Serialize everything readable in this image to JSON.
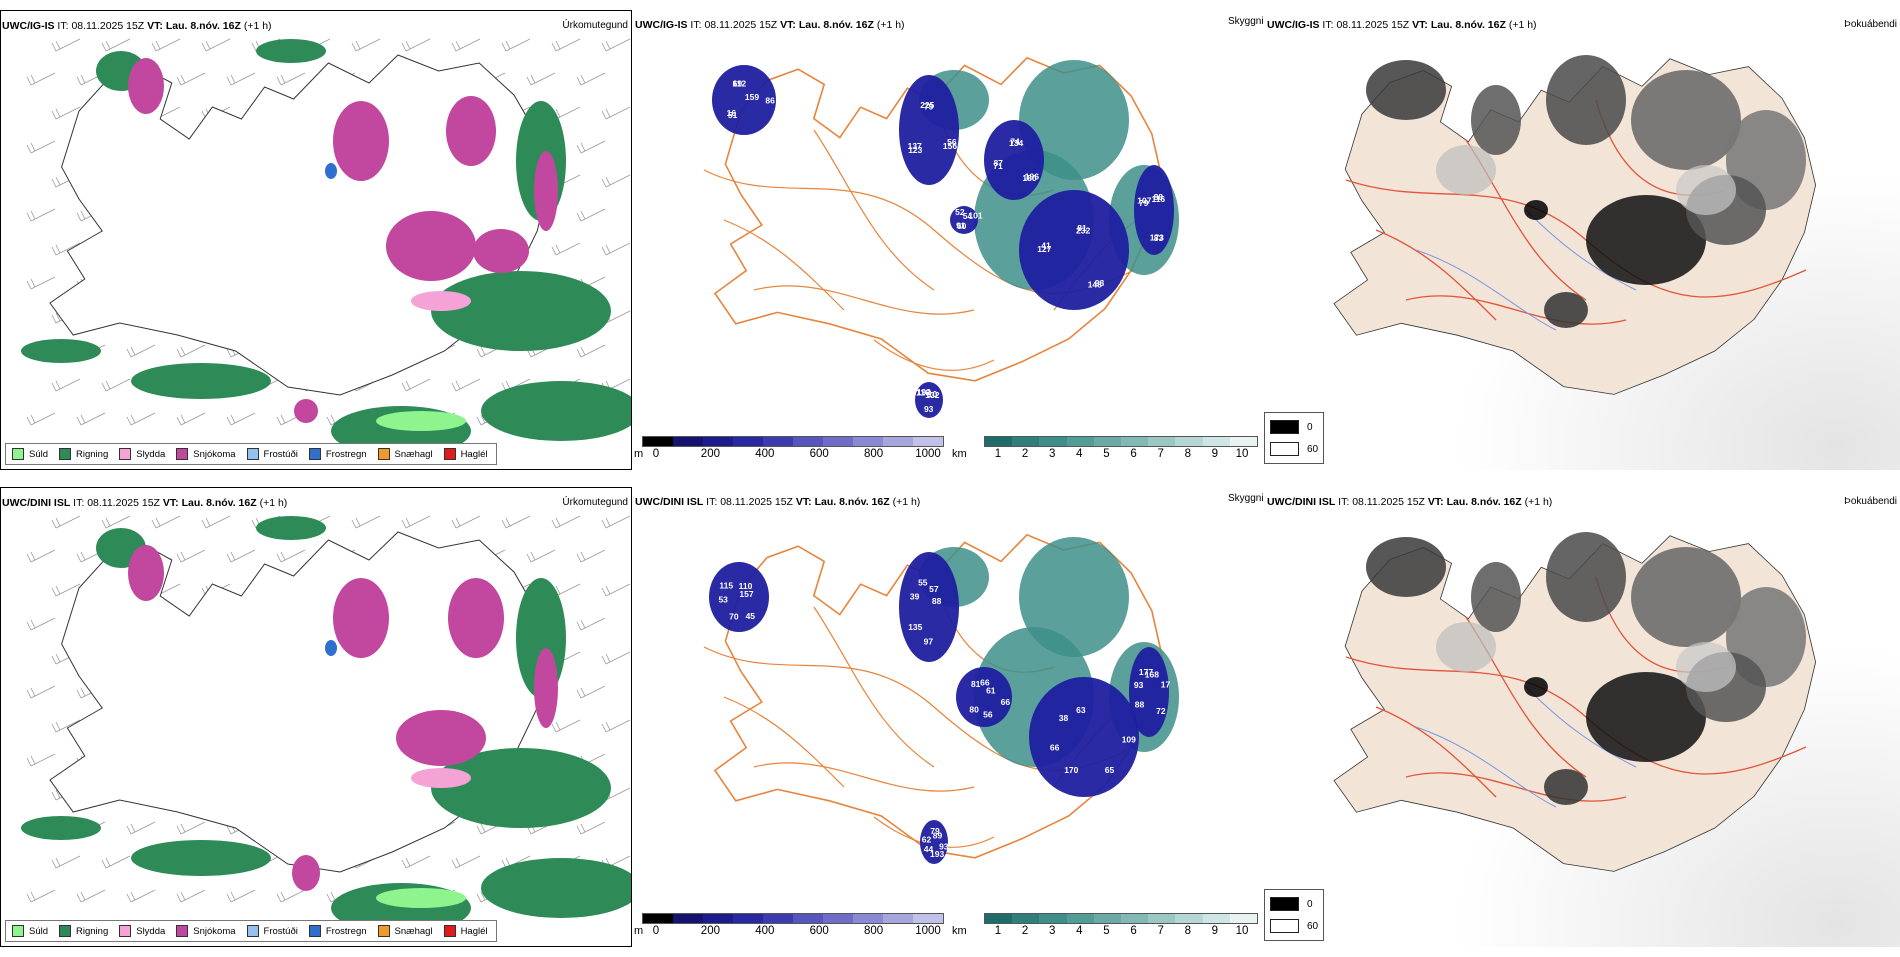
{
  "colors": {
    "sudld": "#8ef58e",
    "rigning": "#2e8b57",
    "slydda": "#f5a3d6",
    "snjokoma": "#c2479e",
    "frostudi": "#93c2f0",
    "frostregn": "#2f6fce",
    "snaehagl": "#ef9a2a",
    "haglel": "#e01b1b",
    "land_tan": "#f2e4d6",
    "road_orange": "#e8843c",
    "cloud_navy": "#1f1fa0",
    "vis_teal": "#3e8f8a"
  },
  "rows": [
    {
      "model": "UWC/IG-IS",
      "it_label": "IT:",
      "it_value": "08.11.2025 15Z",
      "vt_label": "VT:",
      "vt_value": "Lau. 8.nóv. 16Z",
      "lead": "(+1 h)",
      "precip_title": "Úrkomutegund",
      "fog_title": "Þokuábendi",
      "skyggni_label": "Skyggni",
      "cloud_numbers": [
        "159",
        "123",
        "74",
        "93",
        "79",
        "10",
        "60",
        "69",
        "56",
        "71",
        "81",
        "83",
        "116",
        "54",
        "51",
        "225",
        "196",
        "127",
        "88",
        "93",
        "52",
        "86",
        "137",
        "134",
        "148",
        "107",
        "132",
        "91",
        "112",
        "156",
        "87",
        "232",
        "173",
        "192",
        "101",
        "16",
        "79",
        "180",
        "41",
        "116"
      ]
    },
    {
      "model": "UWC/DINI ISL",
      "it_label": "IT:",
      "it_value": "08.11.2025 15Z",
      "vt_label": "VT:",
      "vt_value": "Lau. 8.nóv. 16Z",
      "lead": "(+1 h)",
      "precip_title": "Úrkomutegund",
      "fog_title": "Þokuábendi",
      "skyggni_label": "Skyggni",
      "cloud_numbers": [
        "157",
        "135",
        "66",
        "65",
        "93",
        "89",
        "70",
        "55",
        "66",
        "66",
        "168",
        "193",
        "115",
        "88",
        "80",
        "63",
        "72",
        "62",
        "110",
        "97",
        "81",
        "109",
        "88",
        "79",
        "45",
        "39",
        "61",
        "170",
        "177",
        "93",
        "53",
        "57",
        "56",
        "38",
        "17",
        "44"
      ]
    }
  ],
  "precip_legend": [
    {
      "label": "Súld",
      "color": "#8ef58e"
    },
    {
      "label": "Rigning",
      "color": "#2e8b57"
    },
    {
      "label": "Slydda",
      "color": "#f5a3d6"
    },
    {
      "label": "Snjókoma",
      "color": "#c2479e"
    },
    {
      "label": "Frostúði",
      "color": "#93c2f0"
    },
    {
      "label": "Frostregn",
      "color": "#2f6fce"
    },
    {
      "label": "Snæhagl",
      "color": "#ef9a2a"
    },
    {
      "label": "Haglél",
      "color": "#e01b1b"
    }
  ],
  "cloud_legend": {
    "unit": "m",
    "ticks": [
      "0",
      "200",
      "400",
      "600",
      "800",
      "1000"
    ],
    "colors": [
      "#000000",
      "#14146e",
      "#1c1c8c",
      "#2828a0",
      "#3c3cb0",
      "#5656bc",
      "#6e6ec8",
      "#8a8ad4",
      "#a6a6de",
      "#c2c2e8"
    ]
  },
  "vis_legend": {
    "unit": "km",
    "ticks": [
      "1",
      "2",
      "3",
      "4",
      "5",
      "6",
      "7",
      "8",
      "9",
      "10"
    ],
    "colors": [
      "#1f6d6a",
      "#2f7f7a",
      "#3e8f8a",
      "#539d98",
      "#6aaba6",
      "#82b9b4",
      "#9cc8c4",
      "#b6d7d4",
      "#d0e6e4",
      "#e8f3f2"
    ]
  },
  "fog_legend": [
    {
      "label": "0",
      "color": "#000000"
    },
    {
      "label": "60",
      "color": "#ffffff"
    }
  ]
}
